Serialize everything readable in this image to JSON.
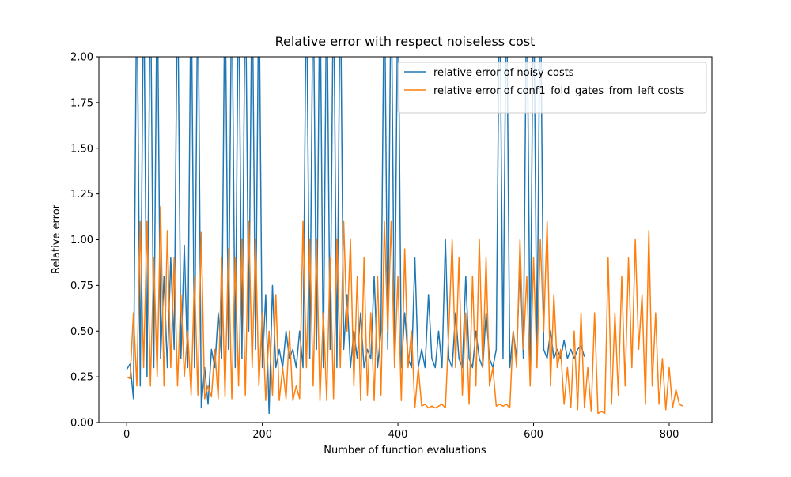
{
  "chart_data": {
    "type": "line",
    "title": "Relative error with respect noiseless cost",
    "x_label": "Number of function evaluations",
    "y_label": "Relative error",
    "xlim": [
      -41,
      863
    ],
    "ylim": [
      0,
      2
    ],
    "xticks": [
      0,
      200,
      400,
      600,
      800
    ],
    "yticks": [
      {
        "value": 0,
        "label": "0.00"
      },
      {
        "value": 0.25,
        "label": "0.25"
      },
      {
        "value": 0.5,
        "label": "0.50"
      },
      {
        "value": 0.75,
        "label": "0.75"
      },
      {
        "value": 1,
        "label": "1.00"
      },
      {
        "value": 1.25,
        "label": "1.25"
      },
      {
        "value": 1.5,
        "label": "1.50"
      },
      {
        "value": 1.75,
        "label": "1.75"
      },
      {
        "value": 2,
        "label": "2.00"
      }
    ],
    "legend": "upper right",
    "x": [
      0,
      5,
      10,
      15,
      20,
      25,
      30,
      35,
      40,
      45,
      50,
      55,
      60,
      65,
      70,
      75,
      80,
      85,
      90,
      95,
      100,
      105,
      110,
      115,
      120,
      125,
      130,
      135,
      140,
      145,
      150,
      155,
      160,
      165,
      170,
      175,
      180,
      185,
      190,
      195,
      200,
      205,
      210,
      215,
      220,
      225,
      230,
      235,
      240,
      245,
      250,
      255,
      260,
      265,
      270,
      275,
      280,
      285,
      290,
      295,
      300,
      305,
      310,
      315,
      320,
      325,
      330,
      335,
      340,
      345,
      350,
      355,
      360,
      365,
      370,
      375,
      380,
      385,
      390,
      395,
      400,
      405,
      410,
      415,
      420,
      425,
      430,
      435,
      440,
      445,
      450,
      455,
      460,
      465,
      470,
      475,
      480,
      485,
      490,
      495,
      500,
      505,
      510,
      515,
      520,
      525,
      530,
      535,
      540,
      545,
      550,
      555,
      560,
      565,
      570,
      575,
      580,
      585,
      590,
      595,
      600,
      605,
      610,
      615,
      620,
      625,
      630,
      635,
      640,
      645,
      650,
      655,
      660,
      665,
      670,
      675,
      680,
      685,
      690,
      695,
      700,
      705,
      710,
      715,
      720,
      725,
      730,
      735,
      740,
      745,
      750,
      755,
      760,
      765,
      770,
      775,
      780,
      785,
      790,
      795,
      800,
      805,
      810,
      815,
      820
    ],
    "series": [
      {
        "name": "relative error of noisy costs",
        "color": "#1f77b4",
        "values": [
          0.29,
          0.32,
          0.13,
          2.5,
          0.2,
          2.5,
          0.25,
          2.5,
          0.3,
          2.5,
          0.35,
          0.8,
          0.3,
          0.9,
          0.4,
          2.5,
          0.35,
          0.97,
          0.3,
          2.5,
          0.3,
          2.5,
          0.08,
          0.3,
          0.1,
          0.4,
          0.3,
          0.6,
          0.35,
          2.5,
          0.4,
          2.5,
          0.3,
          2.5,
          0.35,
          2.5,
          0.5,
          2.5,
          0.4,
          2.5,
          0.3,
          0.7,
          0.05,
          0.75,
          0.3,
          0.4,
          0.3,
          0.5,
          0.35,
          0.4,
          0.3,
          0.5,
          0.3,
          2.5,
          0.35,
          2.5,
          0.4,
          2.5,
          0.3,
          2.5,
          0.4,
          2.5,
          0.3,
          2.5,
          0.4,
          0.7,
          0.3,
          0.5,
          0.35,
          0.6,
          0.3,
          0.4,
          0.35,
          0.8,
          0.3,
          0.5,
          2.5,
          0.4,
          2.5,
          0.35,
          2.5,
          0.3,
          0.6,
          0.35,
          0.3,
          0.9,
          0.3,
          0.4,
          0.3,
          0.7,
          0.35,
          0.3,
          0.5,
          0.3,
          1.0,
          0.35,
          0.3,
          0.6,
          0.35,
          0.3,
          0.8,
          0.35,
          0.3,
          0.5,
          0.35,
          0.3,
          0.6,
          0.35,
          0.3,
          0.4,
          2.5,
          0.35,
          2.5,
          0.3,
          0.5,
          0.35,
          0.9,
          0.35,
          2.5,
          0.3,
          2.5,
          0.35,
          2.5,
          0.4,
          0.35,
          0.5,
          0.35,
          0.4,
          0.35,
          0.45,
          0.35,
          0.4,
          0.35,
          0.4,
          0.42,
          0.36,
          null,
          null,
          null,
          null,
          null,
          null,
          null,
          null,
          null,
          null,
          null,
          null,
          null,
          null,
          null,
          null,
          null,
          null,
          null,
          null,
          null,
          null,
          null,
          null,
          null,
          null,
          null,
          null,
          null
        ]
      },
      {
        "name": "relative error of conf1_fold_gates_from_left costs",
        "color": "#ff7f0e",
        "values": [
          0.25,
          0.24,
          0.6,
          0.2,
          1.1,
          0.3,
          1.1,
          0.2,
          0.9,
          0.25,
          1.18,
          0.2,
          1.05,
          0.3,
          0.9,
          0.2,
          0.7,
          0.25,
          0.5,
          0.15,
          0.8,
          0.15,
          1.04,
          0.13,
          0.2,
          0.14,
          0.4,
          0.13,
          0.9,
          0.14,
          0.95,
          0.13,
          0.9,
          0.2,
          1.0,
          0.15,
          1.1,
          0.3,
          1.0,
          0.2,
          0.6,
          0.12,
          0.5,
          0.15,
          0.7,
          0.12,
          0.3,
          0.13,
          0.5,
          0.12,
          0.2,
          0.13,
          1.1,
          0.3,
          1.0,
          0.2,
          1.0,
          0.12,
          0.6,
          0.12,
          0.9,
          0.13,
          1.0,
          0.3,
          1.1,
          0.5,
          1.0,
          0.2,
          0.8,
          0.12,
          0.9,
          0.15,
          0.6,
          0.12,
          0.8,
          0.15,
          1.1,
          0.5,
          1.1,
          0.3,
          0.8,
          0.12,
          0.95,
          0.3,
          0.5,
          0.08,
          0.3,
          0.09,
          0.1,
          0.08,
          0.09,
          0.08,
          0.09,
          0.1,
          0.08,
          0.5,
          1.0,
          0.3,
          0.9,
          0.15,
          0.6,
          0.1,
          0.8,
          0.2,
          1.0,
          0.3,
          0.9,
          0.2,
          0.3,
          0.09,
          0.1,
          0.09,
          0.1,
          0.08,
          0.5,
          0.3,
          1.0,
          0.4,
          0.8,
          0.2,
          0.9,
          0.3,
          1.0,
          0.5,
          1.1,
          0.2,
          0.7,
          0.3,
          0.4,
          0.1,
          0.3,
          0.08,
          0.5,
          0.07,
          0.6,
          0.08,
          0.3,
          0.06,
          0.6,
          0.05,
          0.06,
          0.05,
          0.9,
          0.1,
          0.6,
          0.15,
          0.8,
          0.2,
          0.9,
          0.3,
          1.0,
          0.4,
          0.7,
          0.1,
          1.05,
          0.2,
          0.6,
          0.1,
          0.35,
          0.07,
          0.3,
          0.08,
          0.18,
          0.1,
          0.09
        ]
      }
    ]
  }
}
